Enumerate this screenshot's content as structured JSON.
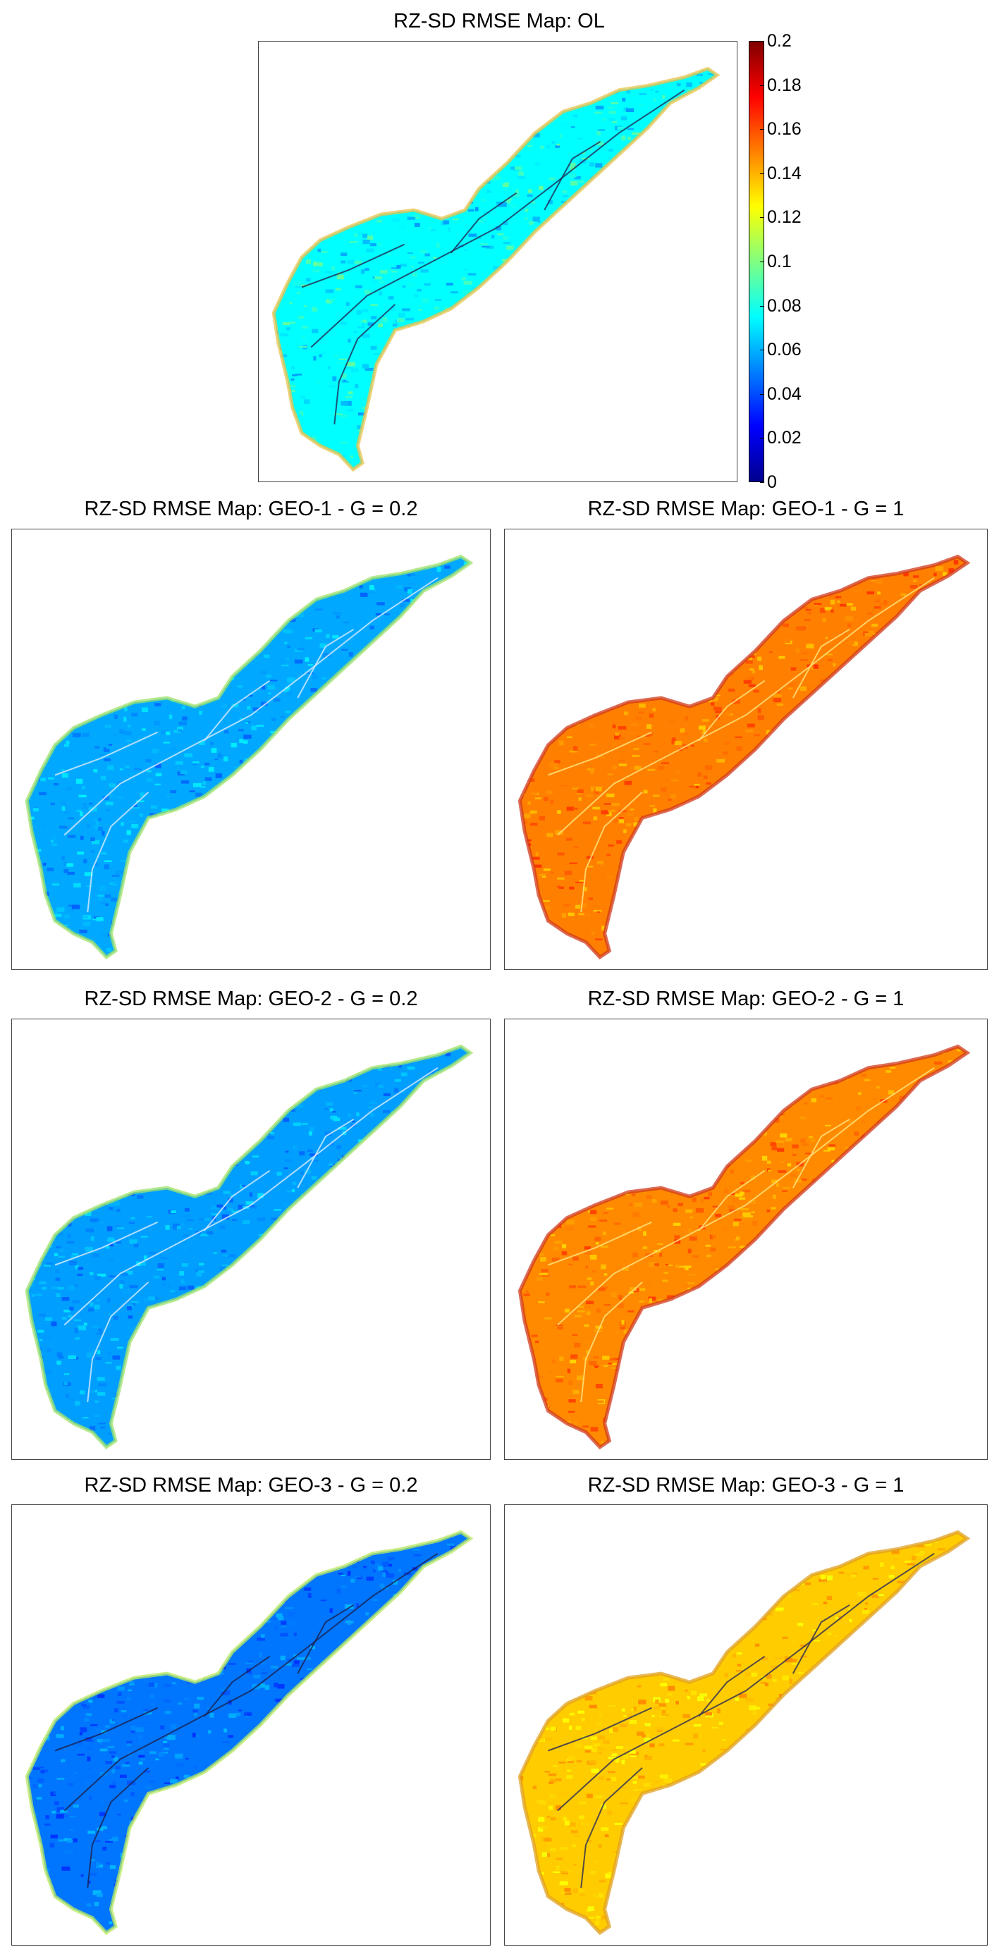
{
  "figure": {
    "colormap": [
      "#00008f",
      "#0000ff",
      "#0080ff",
      "#00ffff",
      "#80ff80",
      "#ffff00",
      "#ff8000",
      "#ff0000",
      "#800000"
    ],
    "colorbar": {
      "ticks": [
        "0.2",
        "0.18",
        "0.16",
        "0.14",
        "0.12",
        "0.1",
        "0.08",
        "0.06",
        "0.04",
        "0.02",
        "0"
      ],
      "range": [
        0,
        0.2
      ]
    },
    "panels": [
      {
        "title": "RZ-SD RMSE Map: OL",
        "level": 0.075,
        "spread": 0.02,
        "edge": "#e8c24a",
        "streams": "#1f2a55"
      },
      {
        "title": "RZ-SD RMSE Map: GEO-1 - G = 0.2",
        "level": 0.058,
        "spread": 0.014,
        "edge": "#9fe36a",
        "streams": "#d9ecff"
      },
      {
        "title": "RZ-SD RMSE Map: GEO-1 - G = 1",
        "level": 0.15,
        "spread": 0.015,
        "edge": "#d23a1c",
        "streams": "#ffe680"
      },
      {
        "title": "RZ-SD RMSE Map: GEO-2 - G = 0.2",
        "level": 0.056,
        "spread": 0.014,
        "edge": "#9fe36a",
        "streams": "#d9ecff"
      },
      {
        "title": "RZ-SD RMSE Map: GEO-2 - G = 1",
        "level": 0.148,
        "spread": 0.015,
        "edge": "#d23a1c",
        "streams": "#ffe680"
      },
      {
        "title": "RZ-SD RMSE Map: GEO-3 - G = 0.2",
        "level": 0.048,
        "spread": 0.014,
        "edge": "#b8ea60",
        "streams": "#1a2250"
      },
      {
        "title": "RZ-SD RMSE Map: GEO-3 - G = 1",
        "level": 0.135,
        "spread": 0.013,
        "edge": "#e0a020",
        "streams": "#2a2a55"
      }
    ]
  }
}
